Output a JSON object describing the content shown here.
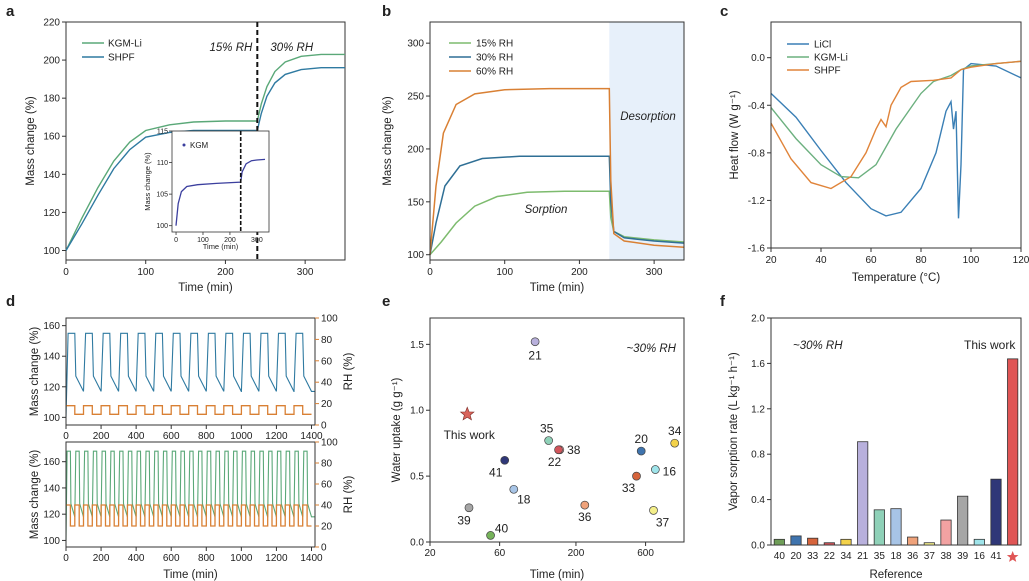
{
  "chart_data": [
    {
      "id": "a",
      "type": "line",
      "panel_label": "a",
      "xlabel": "Time (min)",
      "ylabel": "Mass change (%)",
      "xlim": [
        0,
        350
      ],
      "ylim": [
        95,
        220
      ],
      "xticks": [
        0,
        100,
        200,
        300
      ],
      "yticks": [
        100,
        120,
        140,
        160,
        180,
        200,
        220
      ],
      "annotations": [
        "15% RH",
        "30% RH"
      ],
      "divider_x": 240,
      "series": [
        {
          "name": "KGM-Li",
          "color": "#5aa878",
          "points": [
            [
              0,
              100
            ],
            [
              20,
              117
            ],
            [
              40,
              133
            ],
            [
              60,
              147
            ],
            [
              80,
              157
            ],
            [
              100,
              163
            ],
            [
              130,
              166
            ],
            [
              160,
              167.5
            ],
            [
              200,
              168
            ],
            [
              240,
              168
            ],
            [
              245,
              177
            ],
            [
              252,
              186
            ],
            [
              262,
              194
            ],
            [
              275,
              199
            ],
            [
              295,
              202
            ],
            [
              320,
              203
            ],
            [
              350,
              203
            ]
          ]
        },
        {
          "name": "SHPF",
          "color": "#2f7aa1",
          "points": [
            [
              0,
              100
            ],
            [
              20,
              114
            ],
            [
              40,
              129
            ],
            [
              60,
              143
            ],
            [
              80,
              153
            ],
            [
              100,
              159.5
            ],
            [
              130,
              162
            ],
            [
              160,
              163
            ],
            [
              200,
              163
            ],
            [
              240,
              163
            ],
            [
              245,
              172
            ],
            [
              252,
              181
            ],
            [
              262,
              188
            ],
            [
              275,
              192.5
            ],
            [
              295,
              195
            ],
            [
              320,
              196
            ],
            [
              350,
              196
            ]
          ]
        }
      ],
      "inset": {
        "legend": "KGM",
        "xlabel": "Time (min)",
        "ylabel": "Mass change (%)",
        "xlim": [
          -15,
          345
        ],
        "ylim": [
          99,
          115
        ],
        "xticks": [
          0,
          100,
          200,
          300
        ],
        "yticks": [
          100,
          105,
          110,
          115
        ],
        "color": "#3b3f9e",
        "points": [
          [
            0,
            100
          ],
          [
            8,
            103.5
          ],
          [
            20,
            105.4
          ],
          [
            40,
            106.2
          ],
          [
            80,
            106.5
          ],
          [
            150,
            106.7
          ],
          [
            240,
            106.9
          ],
          [
            245,
            108.5
          ],
          [
            260,
            109.8
          ],
          [
            280,
            110.3
          ],
          [
            300,
            110.4
          ],
          [
            330,
            110.5
          ]
        ]
      }
    },
    {
      "id": "b",
      "type": "line",
      "panel_label": "b",
      "xlabel": "Time (min)",
      "ylabel": "Mass change (%)",
      "xlim": [
        0,
        340
      ],
      "ylim": [
        95,
        320
      ],
      "xticks": [
        0,
        100,
        200,
        300
      ],
      "yticks": [
        100,
        150,
        200,
        250,
        300
      ],
      "shaded_from": 240,
      "annotations": [
        "Desorption",
        "Sorption"
      ],
      "series": [
        {
          "name": "15% RH",
          "color": "#7dbb6e",
          "points": [
            [
              0,
              100
            ],
            [
              15,
              112
            ],
            [
              35,
              130
            ],
            [
              60,
              146
            ],
            [
              90,
              155
            ],
            [
              130,
              159
            ],
            [
              180,
              160
            ],
            [
              240,
              160
            ],
            [
              242,
              135
            ],
            [
              246,
              122
            ],
            [
              260,
              117
            ],
            [
              300,
              114
            ],
            [
              340,
              112
            ]
          ]
        },
        {
          "name": "30% RH",
          "color": "#2f6f95",
          "points": [
            [
              0,
              100
            ],
            [
              8,
              130
            ],
            [
              20,
              165
            ],
            [
              40,
              184
            ],
            [
              70,
              191
            ],
            [
              120,
              193
            ],
            [
              180,
              193
            ],
            [
              240,
              193
            ],
            [
              242,
              150
            ],
            [
              246,
              122
            ],
            [
              260,
              116
            ],
            [
              300,
              113
            ],
            [
              340,
              111
            ]
          ]
        },
        {
          "name": "60% RH",
          "color": "#d98034",
          "points": [
            [
              0,
              100
            ],
            [
              8,
              165
            ],
            [
              18,
              215
            ],
            [
              35,
              242
            ],
            [
              60,
              252
            ],
            [
              100,
              256
            ],
            [
              160,
              257
            ],
            [
              240,
              257
            ],
            [
              242,
              170
            ],
            [
              246,
              120
            ],
            [
              260,
              113
            ],
            [
              300,
              109
            ],
            [
              340,
              107
            ]
          ]
        }
      ]
    },
    {
      "id": "c",
      "type": "line",
      "panel_label": "c",
      "xlabel": "Temperature (°C)",
      "ylabel": "Heat flow (W g⁻¹)",
      "xlim": [
        20,
        120
      ],
      "ylim": [
        -1.6,
        0.3
      ],
      "xticks": [
        20,
        40,
        60,
        80,
        100,
        120
      ],
      "yticks": [
        "0.0",
        "-0.4",
        "-0.8",
        "-1.2",
        "-1.6"
      ],
      "series": [
        {
          "name": "LiCl",
          "color": "#3a7fb5",
          "points": [
            [
              20,
              -0.3
            ],
            [
              30,
              -0.5
            ],
            [
              40,
              -0.78
            ],
            [
              50,
              -1.05
            ],
            [
              60,
              -1.27
            ],
            [
              66,
              -1.33
            ],
            [
              72,
              -1.3
            ],
            [
              80,
              -1.1
            ],
            [
              86,
              -0.8
            ],
            [
              90,
              -0.45
            ],
            [
              92,
              -0.37
            ],
            [
              93,
              -0.6
            ],
            [
              94,
              -0.45
            ],
            [
              95,
              -1.35
            ],
            [
              96,
              -0.9
            ],
            [
              97,
              -0.1
            ],
            [
              100,
              -0.05
            ],
            [
              110,
              -0.07
            ],
            [
              120,
              -0.17
            ]
          ]
        },
        {
          "name": "KGM-Li",
          "color": "#6cb07f",
          "points": [
            [
              20,
              -0.42
            ],
            [
              30,
              -0.68
            ],
            [
              40,
              -0.9
            ],
            [
              48,
              -1.0
            ],
            [
              55,
              -1.01
            ],
            [
              62,
              -0.9
            ],
            [
              70,
              -0.6
            ],
            [
              76,
              -0.42
            ],
            [
              80,
              -0.3
            ],
            [
              85,
              -0.2
            ],
            [
              92,
              -0.15
            ],
            [
              96,
              -0.1
            ],
            [
              100,
              -0.07
            ],
            [
              110,
              -0.05
            ],
            [
              120,
              -0.03
            ]
          ]
        },
        {
          "name": "SHPF",
          "color": "#e0843a",
          "points": [
            [
              20,
              -0.55
            ],
            [
              28,
              -0.85
            ],
            [
              36,
              -1.05
            ],
            [
              44,
              -1.1
            ],
            [
              52,
              -1.0
            ],
            [
              58,
              -0.8
            ],
            [
              62,
              -0.6
            ],
            [
              64,
              -0.52
            ],
            [
              66,
              -0.58
            ],
            [
              68,
              -0.4
            ],
            [
              72,
              -0.25
            ],
            [
              76,
              -0.2
            ],
            [
              85,
              -0.19
            ],
            [
              92,
              -0.17
            ],
            [
              96,
              -0.1
            ],
            [
              100,
              -0.08
            ],
            [
              110,
              -0.05
            ],
            [
              120,
              -0.03
            ]
          ]
        }
      ]
    },
    {
      "id": "d",
      "type": "line",
      "panel_label": "d",
      "xlabel": "Time (min)",
      "ylabel": "Mass change (%)",
      "ylabel_right": "RH (%)",
      "xlim": [
        0,
        1420
      ],
      "xticks": [
        0,
        200,
        400,
        600,
        800,
        1000,
        1200,
        1400
      ],
      "top": {
        "ylim": [
          95,
          165
        ],
        "yticks": [
          100,
          120,
          140,
          160
        ],
        "rh_ticks": [
          0,
          20,
          40,
          60,
          80,
          100
        ],
        "cycles": 14,
        "period": 100,
        "high_min": 42,
        "high_max": 18,
        "peak": 155,
        "base": 117,
        "start": 100,
        "color": "#2f7aa1",
        "rh_color": "#d98034"
      },
      "bottom": {
        "ylim": [
          95,
          175
        ],
        "yticks": [
          100,
          120,
          140,
          160
        ],
        "rh_ticks": [
          0,
          20,
          40,
          60,
          80,
          100
        ],
        "cycles": 28,
        "period": 50,
        "high_max": 40,
        "high_min": 20,
        "peak": 168,
        "base": 118,
        "start": 100,
        "color": "#5aa878",
        "rh_color": "#d98034"
      }
    },
    {
      "id": "e",
      "type": "scatter",
      "panel_label": "e",
      "xlabel": "Time (min)",
      "ylabel": "Water uptake (g g⁻¹)",
      "xscale": "log",
      "xlim": [
        20,
        1100
      ],
      "ylim": [
        0,
        1.7
      ],
      "xticks": [
        20,
        60,
        200,
        600
      ],
      "yticks": [
        "0.0",
        "0.5",
        "1.0",
        "1.5"
      ],
      "annotation": "~30% RH",
      "this_work": {
        "label": "This work",
        "x": 36,
        "y": 0.97
      },
      "points": [
        {
          "ref": "21",
          "x": 105,
          "y": 1.52,
          "color": "#b8b0dc"
        },
        {
          "ref": "35",
          "x": 130,
          "y": 0.77,
          "color": "#8fd1b8"
        },
        {
          "ref": "38",
          "x": 155,
          "y": 0.7,
          "color": "#f2a2a2"
        },
        {
          "ref": "22",
          "x": 152,
          "y": 0.7,
          "color": "#d1555b"
        },
        {
          "ref": "20",
          "x": 560,
          "y": 0.69,
          "color": "#3f74ae"
        },
        {
          "ref": "34",
          "x": 950,
          "y": 0.75,
          "color": "#f3d24a"
        },
        {
          "ref": "41",
          "x": 65,
          "y": 0.62,
          "color": "#2f3778"
        },
        {
          "ref": "16",
          "x": 700,
          "y": 0.55,
          "color": "#9fe4ea"
        },
        {
          "ref": "33",
          "x": 520,
          "y": 0.5,
          "color": "#d6643c"
        },
        {
          "ref": "18",
          "x": 75,
          "y": 0.4,
          "color": "#a7c4e6"
        },
        {
          "ref": "39",
          "x": 37,
          "y": 0.26,
          "color": "#a6a6a6"
        },
        {
          "ref": "36",
          "x": 230,
          "y": 0.28,
          "color": "#efa27a"
        },
        {
          "ref": "37",
          "x": 680,
          "y": 0.24,
          "color": "#f4ef8a"
        },
        {
          "ref": "40",
          "x": 52,
          "y": 0.05,
          "color": "#76b35a"
        }
      ]
    },
    {
      "id": "f",
      "type": "bar",
      "panel_label": "f",
      "xlabel": "Reference",
      "ylabel": "Vapor sorption rate (L kg⁻¹ h⁻¹)",
      "ylim": [
        0,
        2.0
      ],
      "yticks": [
        "0.0",
        "0.4",
        "0.8",
        "1.2",
        "1.6",
        "2.0"
      ],
      "annotation": "~30% RH",
      "this_work_label": "This work",
      "categories": [
        "40",
        "20",
        "33",
        "22",
        "34",
        "21",
        "35",
        "18",
        "36",
        "37",
        "38",
        "39",
        "16",
        "41",
        "★"
      ],
      "values": [
        0.05,
        0.08,
        0.06,
        0.02,
        0.05,
        0.91,
        0.31,
        0.32,
        0.07,
        0.02,
        0.22,
        0.43,
        0.05,
        0.58,
        1.64
      ],
      "colors": [
        "#6f9e58",
        "#3f74ae",
        "#d6643c",
        "#d1555b",
        "#f3d24a",
        "#b8b0dc",
        "#8fd1b8",
        "#a7c4e6",
        "#efa27a",
        "#f4ef8a",
        "#f2a2a2",
        "#a6a6a6",
        "#9fe4ea",
        "#2f3778",
        "#e05555"
      ]
    }
  ]
}
